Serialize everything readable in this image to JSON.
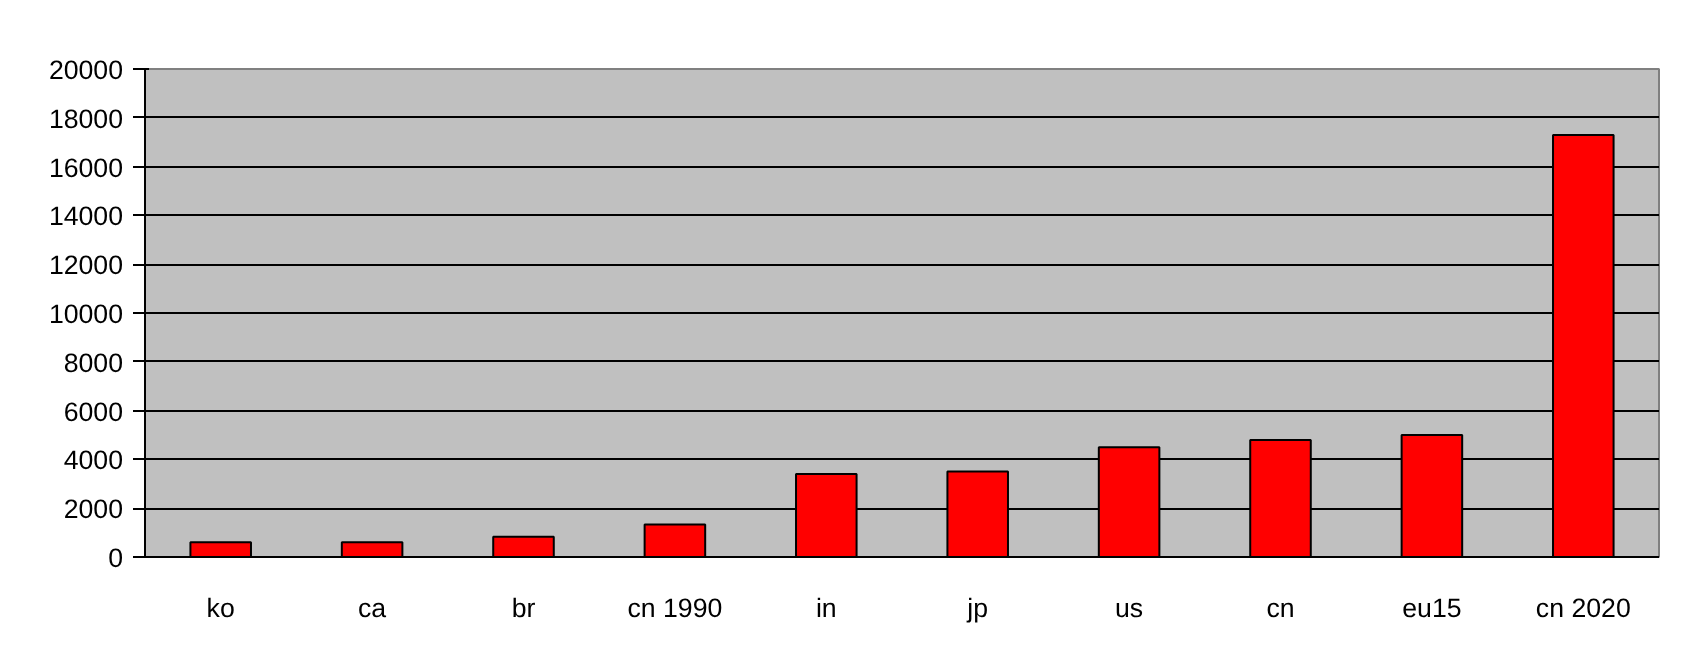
{
  "chart_data": {
    "type": "bar",
    "categories": [
      "ko",
      "ca",
      "br",
      "cn 1990",
      "in",
      "jp",
      "us",
      "cn",
      "eu15",
      "cn 2020"
    ],
    "values": [
      600,
      600,
      830,
      1330,
      3400,
      3500,
      4500,
      4800,
      5000,
      17300
    ],
    "color": "#ff0000",
    "ylim": [
      0,
      20000
    ],
    "yticks": [
      0,
      2000,
      4000,
      6000,
      8000,
      10000,
      12000,
      14000,
      16000,
      18000,
      20000
    ],
    "grid": "y"
  }
}
